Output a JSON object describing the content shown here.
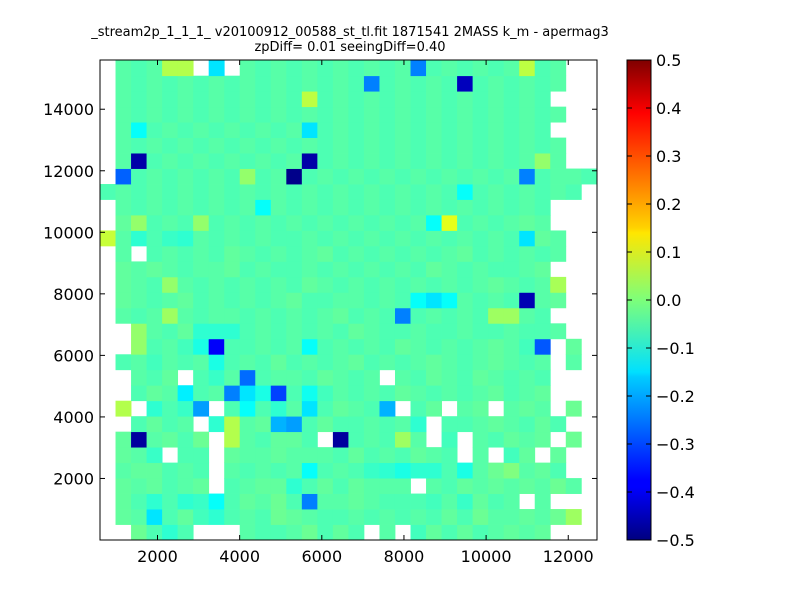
{
  "chart_data": {
    "type": "heatmap",
    "title": "_stream2p_1_1_1_ v20100912_00588_st_tl.fit 1871541 2MASS k_m - apermag3",
    "subtitle": "zpDiff= 0.01 seeingDiff=0.40",
    "xlabel": "",
    "ylabel": "",
    "xlim": [
      600,
      12700
    ],
    "ylim": [
      0,
      15600
    ],
    "x_ticks": [
      "2000",
      "4000",
      "6000",
      "8000",
      "10000",
      "12000"
    ],
    "y_ticks": [
      "2000",
      "4000",
      "6000",
      "8000",
      "10000",
      "12000",
      "14000"
    ],
    "colorbar": {
      "colormap": "jet",
      "range": [
        -0.5,
        0.5
      ],
      "ticks": [
        "0.5",
        "0.4",
        "0.3",
        "0.2",
        "0.1",
        "0.0",
        "−0.1",
        "−0.2",
        "−0.3",
        "−0.4",
        "−0.5"
      ]
    },
    "grid": false,
    "bins": {
      "nx": 32,
      "ny": 31,
      "x_start": 600,
      "x_step": 378,
      "y_start": 0,
      "y_step": 503,
      "missing": null,
      "rows": [
        [
          null,
          null,
          -0.02,
          -0.05,
          -0.08,
          -0.05,
          null,
          null,
          null,
          -0.04,
          -0.05,
          -0.05,
          -0.04,
          -0.02,
          -0.05,
          -0.03,
          -0.05,
          null,
          -0.04,
          null,
          -0.06,
          -0.03,
          -0.05,
          -0.03,
          -0.05,
          -0.04,
          -0.03,
          -0.04,
          -0.03,
          null,
          null,
          null
        ],
        [
          null,
          -0.03,
          -0.04,
          -0.15,
          -0.05,
          -0.03,
          -0.06,
          -0.08,
          -0.05,
          -0.04,
          -0.05,
          -0.02,
          -0.03,
          -0.04,
          -0.05,
          -0.05,
          -0.04,
          -0.05,
          -0.04,
          -0.05,
          -0.04,
          -0.05,
          -0.03,
          -0.05,
          -0.02,
          -0.04,
          -0.04,
          -0.03,
          -0.04,
          -0.02,
          0.03,
          null
        ],
        [
          null,
          -0.03,
          -0.05,
          -0.08,
          -0.05,
          -0.08,
          -0.07,
          -0.12,
          -0.05,
          -0.03,
          -0.04,
          -0.02,
          -0.05,
          -0.25,
          -0.04,
          -0.04,
          -0.03,
          -0.04,
          -0.05,
          -0.05,
          -0.05,
          -0.06,
          -0.04,
          -0.07,
          -0.03,
          -0.05,
          -0.04,
          null,
          -0.04,
          null,
          null,
          null
        ],
        [
          null,
          -0.03,
          -0.04,
          -0.03,
          -0.05,
          -0.04,
          -0.03,
          null,
          -0.05,
          -0.04,
          -0.03,
          -0.03,
          -0.08,
          -0.05,
          -0.03,
          -0.05,
          -0.03,
          -0.04,
          -0.04,
          -0.04,
          null,
          -0.04,
          -0.05,
          -0.03,
          -0.04,
          -0.03,
          -0.04,
          -0.03,
          -0.04,
          -0.02,
          -0.04,
          null
        ],
        [
          null,
          -0.04,
          -0.03,
          -0.03,
          -0.05,
          -0.04,
          -0.05,
          null,
          -0.04,
          -0.05,
          -0.04,
          -0.05,
          -0.04,
          -0.12,
          -0.05,
          -0.04,
          -0.05,
          -0.07,
          -0.08,
          -0.1,
          -0.08,
          -0.08,
          -0.05,
          -0.1,
          -0.04,
          -0.02,
          0.0,
          -0.04,
          -0.03,
          -0.05,
          null,
          null
        ],
        [
          null,
          -0.03,
          -0.04,
          -0.07,
          null,
          -0.05,
          -0.05,
          null,
          -0.03,
          -0.04,
          -0.04,
          -0.03,
          -0.04,
          -0.04,
          -0.04,
          -0.05,
          -0.03,
          -0.05,
          -0.04,
          -0.05,
          -0.03,
          -0.04,
          -0.05,
          null,
          -0.04,
          null,
          -0.06,
          -0.03,
          null,
          -0.03,
          null,
          null
        ],
        [
          null,
          -0.03,
          -0.47,
          -0.04,
          -0.03,
          -0.05,
          -0.02,
          null,
          0.05,
          -0.04,
          -0.05,
          -0.03,
          -0.03,
          -0.05,
          null,
          -0.47,
          -0.05,
          -0.04,
          -0.05,
          0.03,
          -0.04,
          null,
          -0.06,
          null,
          -0.04,
          -0.05,
          -0.03,
          -0.04,
          -0.03,
          null,
          -0.02,
          null
        ],
        [
          null,
          null,
          -0.05,
          -0.03,
          -0.05,
          -0.04,
          null,
          -0.08,
          0.05,
          -0.04,
          -0.03,
          -0.2,
          -0.22,
          -0.05,
          -0.03,
          -0.05,
          -0.05,
          -0.04,
          -0.05,
          -0.04,
          -0.08,
          null,
          -0.05,
          -0.05,
          -0.04,
          -0.03,
          -0.04,
          -0.05,
          -0.03,
          -0.05,
          null,
          null
        ],
        [
          null,
          0.05,
          null,
          -0.08,
          -0.05,
          -0.07,
          -0.22,
          null,
          -0.05,
          -0.12,
          -0.05,
          -0.08,
          -0.04,
          -0.15,
          -0.05,
          -0.03,
          -0.04,
          -0.05,
          -0.2,
          null,
          -0.05,
          -0.03,
          null,
          -0.04,
          -0.03,
          null,
          -0.04,
          -0.03,
          -0.04,
          null,
          -0.02,
          null
        ],
        [
          null,
          null,
          -0.05,
          -0.03,
          -0.04,
          -0.14,
          -0.05,
          -0.04,
          -0.25,
          -0.15,
          -0.1,
          -0.31,
          -0.05,
          -0.11,
          -0.06,
          -0.04,
          -0.05,
          -0.04,
          -0.05,
          -0.03,
          -0.04,
          -0.05,
          -0.04,
          -0.05,
          -0.04,
          -0.03,
          -0.05,
          -0.04,
          -0.03,
          null,
          null,
          null
        ],
        [
          null,
          null,
          -0.04,
          -0.05,
          -0.03,
          null,
          -0.05,
          -0.07,
          -0.04,
          -0.27,
          -0.05,
          -0.04,
          -0.04,
          -0.05,
          -0.03,
          -0.04,
          -0.05,
          -0.04,
          null,
          -0.04,
          -0.05,
          -0.03,
          -0.04,
          -0.05,
          -0.03,
          -0.04,
          -0.05,
          -0.04,
          -0.05,
          null,
          null,
          null
        ],
        [
          null,
          -0.05,
          -0.04,
          -0.06,
          -0.04,
          -0.05,
          -0.04,
          -0.1,
          -0.05,
          -0.04,
          -0.05,
          -0.03,
          -0.05,
          -0.04,
          -0.05,
          -0.04,
          -0.03,
          -0.05,
          -0.04,
          -0.05,
          -0.04,
          -0.03,
          -0.04,
          -0.05,
          -0.04,
          -0.03,
          -0.04,
          -0.05,
          -0.04,
          null,
          -0.04,
          null
        ],
        [
          null,
          null,
          0.02,
          -0.05,
          -0.04,
          -0.06,
          -0.1,
          -0.38,
          -0.05,
          -0.05,
          -0.04,
          -0.05,
          -0.04,
          -0.12,
          -0.05,
          -0.04,
          -0.05,
          -0.04,
          -0.05,
          -0.03,
          -0.04,
          -0.05,
          -0.04,
          -0.05,
          -0.04,
          -0.03,
          -0.04,
          -0.06,
          -0.29,
          null,
          -0.03,
          null
        ],
        [
          null,
          null,
          0.02,
          -0.04,
          -0.05,
          -0.03,
          -0.08,
          -0.08,
          -0.08,
          -0.05,
          -0.04,
          -0.05,
          -0.04,
          -0.05,
          -0.04,
          -0.05,
          -0.03,
          -0.04,
          -0.05,
          -0.05,
          -0.04,
          -0.05,
          -0.05,
          -0.04,
          -0.05,
          -0.05,
          -0.04,
          -0.05,
          -0.05,
          -0.04,
          null,
          null
        ],
        [
          null,
          -0.04,
          -0.05,
          -0.04,
          0.03,
          -0.04,
          -0.05,
          -0.04,
          -0.04,
          -0.05,
          -0.04,
          -0.05,
          -0.04,
          -0.05,
          -0.04,
          -0.03,
          -0.05,
          -0.04,
          -0.05,
          -0.25,
          -0.05,
          -0.04,
          -0.05,
          -0.04,
          -0.05,
          0.03,
          0.03,
          -0.04,
          -0.05,
          null,
          null,
          null
        ],
        [
          null,
          -0.03,
          -0.04,
          -0.05,
          -0.04,
          -0.03,
          -0.05,
          -0.04,
          -0.05,
          -0.04,
          -0.05,
          -0.04,
          -0.03,
          -0.05,
          -0.05,
          -0.04,
          -0.04,
          -0.05,
          -0.04,
          -0.05,
          -0.12,
          -0.15,
          -0.12,
          -0.04,
          -0.05,
          -0.04,
          -0.05,
          -0.45,
          -0.04,
          -0.03,
          null,
          null
        ],
        [
          null,
          -0.03,
          -0.04,
          -0.05,
          0.02,
          -0.04,
          -0.05,
          -0.04,
          -0.05,
          -0.04,
          -0.05,
          -0.04,
          -0.05,
          -0.03,
          -0.04,
          -0.05,
          -0.04,
          -0.05,
          -0.04,
          -0.05,
          -0.04,
          -0.05,
          -0.04,
          -0.05,
          -0.04,
          -0.03,
          -0.04,
          -0.05,
          -0.04,
          0.04,
          null,
          null
        ],
        [
          null,
          -0.03,
          -0.04,
          -0.03,
          -0.04,
          -0.05,
          -0.04,
          -0.04,
          -0.03,
          -0.05,
          -0.04,
          -0.05,
          -0.05,
          -0.04,
          -0.05,
          -0.04,
          -0.05,
          -0.04,
          -0.05,
          -0.04,
          -0.05,
          -0.03,
          -0.04,
          -0.05,
          -0.04,
          -0.05,
          -0.05,
          -0.04,
          -0.03,
          null,
          null,
          null
        ],
        [
          null,
          -0.04,
          null,
          -0.05,
          -0.04,
          -0.05,
          -0.04,
          -0.05,
          -0.03,
          -0.04,
          -0.05,
          -0.04,
          -0.05,
          -0.04,
          -0.03,
          -0.05,
          -0.04,
          -0.05,
          -0.04,
          -0.05,
          -0.04,
          -0.05,
          -0.04,
          -0.03,
          -0.05,
          -0.04,
          -0.05,
          -0.04,
          -0.05,
          -0.04,
          null,
          null
        ],
        [
          0.07,
          -0.04,
          -0.08,
          -0.05,
          -0.07,
          -0.08,
          -0.04,
          -0.05,
          -0.04,
          -0.05,
          -0.04,
          -0.05,
          -0.05,
          -0.04,
          -0.05,
          -0.04,
          -0.05,
          -0.04,
          -0.05,
          -0.04,
          -0.05,
          -0.04,
          -0.05,
          -0.04,
          -0.05,
          -0.04,
          -0.05,
          -0.15,
          -0.03,
          -0.04,
          null,
          null
        ],
        [
          null,
          -0.03,
          0.02,
          -0.05,
          -0.04,
          -0.05,
          0.02,
          -0.05,
          -0.04,
          -0.05,
          -0.04,
          -0.05,
          -0.04,
          -0.05,
          -0.04,
          -0.05,
          -0.04,
          -0.05,
          -0.04,
          -0.05,
          -0.04,
          -0.12,
          0.1,
          -0.05,
          -0.04,
          -0.05,
          -0.04,
          -0.03,
          -0.04,
          null,
          null,
          null
        ],
        [
          null,
          -0.04,
          -0.05,
          -0.04,
          -0.05,
          -0.04,
          -0.05,
          -0.04,
          -0.05,
          -0.04,
          -0.12,
          -0.04,
          -0.05,
          -0.04,
          -0.05,
          -0.04,
          -0.05,
          -0.04,
          -0.05,
          -0.04,
          -0.05,
          -0.04,
          -0.05,
          -0.04,
          -0.05,
          -0.04,
          -0.05,
          -0.04,
          -0.05,
          null,
          null,
          null
        ],
        [
          -0.05,
          -0.04,
          -0.05,
          -0.04,
          -0.05,
          -0.04,
          -0.05,
          -0.04,
          -0.05,
          -0.04,
          -0.05,
          -0.04,
          -0.05,
          -0.04,
          -0.05,
          -0.04,
          -0.05,
          -0.04,
          -0.05,
          -0.04,
          -0.05,
          -0.04,
          -0.05,
          -0.12,
          -0.05,
          -0.04,
          -0.05,
          -0.04,
          -0.05,
          -0.04,
          -0.05,
          null
        ],
        [
          null,
          -0.28,
          -0.05,
          -0.04,
          -0.05,
          -0.04,
          -0.05,
          -0.04,
          -0.05,
          0.02,
          -0.05,
          -0.04,
          -0.49,
          -0.05,
          -0.04,
          -0.05,
          -0.04,
          -0.05,
          -0.04,
          -0.05,
          -0.04,
          -0.05,
          -0.04,
          -0.05,
          -0.04,
          -0.05,
          -0.04,
          -0.25,
          -0.05,
          -0.04,
          -0.04,
          -0.05
        ],
        [
          null,
          -0.04,
          -0.46,
          -0.05,
          -0.04,
          -0.05,
          -0.04,
          -0.05,
          -0.04,
          -0.05,
          -0.04,
          -0.05,
          -0.04,
          -0.46,
          -0.05,
          -0.04,
          -0.05,
          -0.04,
          -0.05,
          -0.04,
          -0.05,
          -0.04,
          -0.05,
          -0.04,
          -0.05,
          -0.04,
          -0.05,
          -0.04,
          0.02,
          -0.04,
          null,
          null
        ],
        [
          null,
          -0.04,
          -0.05,
          -0.04,
          -0.05,
          -0.04,
          -0.05,
          -0.04,
          -0.05,
          -0.04,
          -0.05,
          -0.04,
          -0.05,
          -0.04,
          -0.05,
          -0.04,
          -0.05,
          -0.04,
          -0.05,
          -0.04,
          -0.05,
          -0.04,
          -0.05,
          -0.04,
          -0.05,
          -0.04,
          -0.05,
          -0.04,
          -0.05,
          -0.04,
          null,
          null
        ],
        [
          null,
          -0.04,
          -0.12,
          -0.05,
          -0.04,
          -0.05,
          -0.04,
          -0.05,
          -0.04,
          -0.05,
          -0.04,
          -0.05,
          -0.04,
          -0.15,
          -0.05,
          -0.04,
          -0.05,
          -0.04,
          -0.05,
          -0.04,
          -0.05,
          -0.04,
          -0.05,
          -0.04,
          -0.05,
          -0.04,
          -0.05,
          -0.04,
          -0.05,
          null,
          null,
          null
        ],
        [
          null,
          -0.04,
          -0.05,
          -0.04,
          -0.05,
          -0.04,
          -0.05,
          -0.04,
          -0.05,
          -0.04,
          -0.05,
          -0.04,
          -0.05,
          -0.04,
          -0.05,
          -0.04,
          -0.05,
          -0.04,
          -0.05,
          -0.04,
          -0.05,
          -0.04,
          -0.05,
          -0.04,
          -0.05,
          -0.04,
          -0.05,
          -0.04,
          -0.05,
          -0.04,
          null,
          null
        ],
        [
          null,
          -0.04,
          -0.05,
          -0.04,
          -0.05,
          -0.04,
          -0.05,
          -0.04,
          -0.05,
          -0.04,
          -0.05,
          -0.04,
          -0.05,
          0.06,
          -0.05,
          -0.04,
          -0.05,
          -0.04,
          -0.05,
          -0.04,
          -0.05,
          -0.04,
          -0.05,
          -0.04,
          -0.05,
          -0.04,
          -0.05,
          -0.04,
          -0.05,
          null,
          null,
          null
        ],
        [
          null,
          -0.04,
          -0.05,
          -0.04,
          -0.05,
          -0.04,
          -0.05,
          -0.04,
          -0.05,
          -0.04,
          -0.05,
          -0.04,
          -0.05,
          -0.04,
          -0.05,
          -0.04,
          -0.05,
          -0.25,
          -0.05,
          -0.04,
          -0.05,
          -0.04,
          -0.05,
          -0.44,
          -0.05,
          -0.04,
          -0.05,
          -0.04,
          -0.05,
          -0.04,
          null,
          null
        ],
        [
          null,
          -0.04,
          -0.05,
          -0.04,
          0.05,
          0.05,
          null,
          -0.15,
          null,
          -0.04,
          -0.05,
          -0.04,
          -0.05,
          -0.04,
          -0.05,
          -0.04,
          -0.05,
          -0.04,
          -0.05,
          -0.04,
          -0.25,
          -0.05,
          -0.04,
          -0.05,
          -0.04,
          -0.05,
          -0.04,
          0.06,
          -0.05,
          -0.04,
          null,
          null
        ]
      ]
    }
  }
}
